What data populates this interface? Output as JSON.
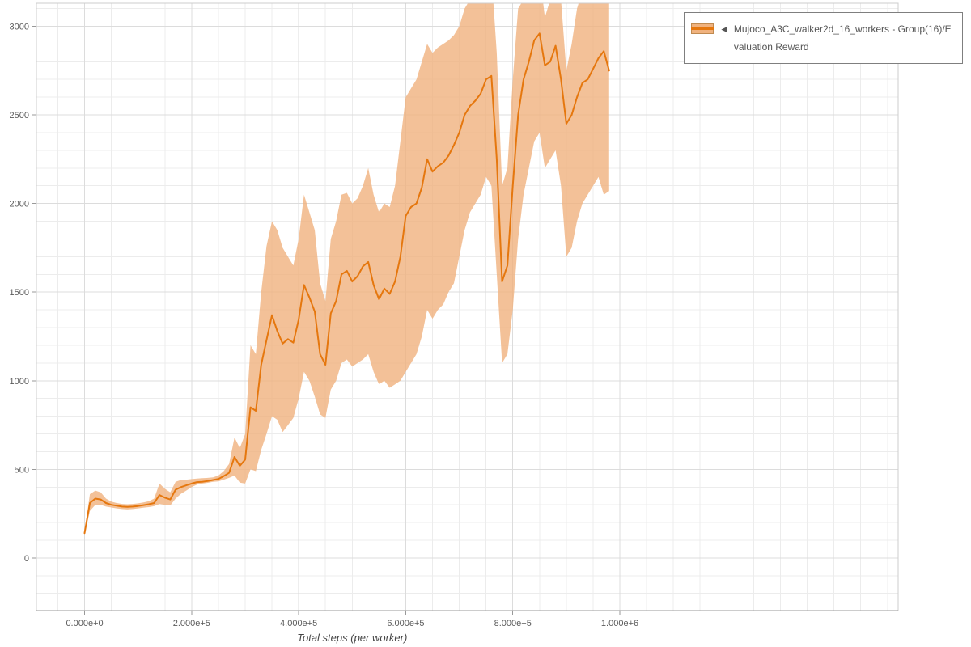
{
  "legend": {
    "collapse_icon": "◄",
    "label": "Mujoco_A3C_walker2d_16_workers - Group(16)/Evaluation Reward"
  },
  "chart_data": {
    "type": "line",
    "title": "",
    "xlabel": "Total steps (per worker)",
    "ylabel": "",
    "xlim": [
      -90000,
      1520000
    ],
    "ylim": [
      -297,
      3130
    ],
    "grid": {
      "on": true,
      "x_minor_step": 50000,
      "y_minor_step": 100,
      "minor_color": "#ececec",
      "major_color": "#dcdcdc"
    },
    "legend_position": "top-right-outside",
    "x_ticks": [
      {
        "value": 0,
        "label": "0.000e+0"
      },
      {
        "value": 200000,
        "label": "2.000e+5"
      },
      {
        "value": 400000,
        "label": "4.000e+5"
      },
      {
        "value": 600000,
        "label": "6.000e+5"
      },
      {
        "value": 800000,
        "label": "8.000e+5"
      },
      {
        "value": 1000000,
        "label": "1.000e+6"
      }
    ],
    "y_ticks": [
      {
        "value": 0,
        "label": "0"
      },
      {
        "value": 500,
        "label": "500"
      },
      {
        "value": 1000,
        "label": "1000"
      },
      {
        "value": 1500,
        "label": "1500"
      },
      {
        "value": 2000,
        "label": "2000"
      },
      {
        "value": 2500,
        "label": "2500"
      },
      {
        "value": 3000,
        "label": "3000"
      }
    ],
    "series": [
      {
        "name": "Mujoco_A3C_walker2d_16_workers - Group(16)/Evaluation Reward",
        "color": "#e5770e",
        "band_color": "#f0b27e",
        "band_opacity": 0.8,
        "x_start": 0,
        "x_step": 10000,
        "mean": [
          140,
          310,
          335,
          330,
          310,
          300,
          295,
          290,
          288,
          290,
          293,
          298,
          303,
          310,
          355,
          340,
          330,
          385,
          400,
          410,
          420,
          428,
          430,
          434,
          440,
          446,
          462,
          480,
          570,
          520,
          555,
          850,
          830,
          1090,
          1230,
          1370,
          1280,
          1210,
          1235,
          1215,
          1345,
          1540,
          1470,
          1390,
          1150,
          1090,
          1380,
          1450,
          1600,
          1620,
          1560,
          1590,
          1645,
          1670,
          1540,
          1460,
          1520,
          1490,
          1560,
          1700,
          1930,
          1980,
          2000,
          2090,
          2250,
          2180,
          2210,
          2230,
          2270,
          2330,
          2400,
          2500,
          2550,
          2580,
          2620,
          2700,
          2720,
          2250,
          1560,
          1650,
          2100,
          2500,
          2700,
          2800,
          2920,
          2960,
          2780,
          2800,
          2890,
          2700,
          2450,
          2500,
          2600,
          2680,
          2700,
          2760,
          2820,
          2860,
          2750
        ],
        "lower": [
          130,
          265,
          300,
          300,
          290,
          285,
          280,
          276,
          274,
          276,
          280,
          284,
          287,
          292,
          305,
          300,
          296,
          335,
          362,
          380,
          400,
          414,
          420,
          424,
          430,
          432,
          442,
          452,
          465,
          425,
          420,
          500,
          490,
          610,
          700,
          800,
          780,
          710,
          750,
          790,
          900,
          1050,
          1000,
          910,
          810,
          790,
          950,
          1000,
          1100,
          1120,
          1080,
          1100,
          1120,
          1150,
          1050,
          980,
          1000,
          960,
          980,
          1000,
          1050,
          1100,
          1150,
          1250,
          1400,
          1350,
          1400,
          1430,
          1500,
          1550,
          1700,
          1850,
          1950,
          2000,
          2050,
          2150,
          2100,
          1600,
          1100,
          1150,
          1400,
          1800,
          2050,
          2200,
          2350,
          2400,
          2200,
          2250,
          2300,
          2100,
          1700,
          1750,
          1900,
          2000,
          2050,
          2100,
          2150,
          2050,
          2070
        ],
        "upper": [
          150,
          360,
          380,
          370,
          335,
          318,
          310,
          305,
          303,
          305,
          308,
          313,
          320,
          335,
          420,
          390,
          370,
          430,
          440,
          442,
          445,
          448,
          450,
          452,
          455,
          465,
          490,
          530,
          680,
          620,
          700,
          1200,
          1150,
          1500,
          1760,
          1900,
          1850,
          1750,
          1700,
          1650,
          1800,
          2050,
          1950,
          1850,
          1550,
          1450,
          1800,
          1900,
          2050,
          2060,
          2000,
          2030,
          2100,
          2200,
          2050,
          1950,
          2000,
          1980,
          2100,
          2350,
          2600,
          2650,
          2700,
          2800,
          2900,
          2850,
          2880,
          2900,
          2920,
          2950,
          3000,
          3100,
          3150,
          3180,
          3250,
          3280,
          3300,
          2850,
          2100,
          2200,
          2700,
          3100,
          3150,
          3250,
          3300,
          3300,
          3050,
          3150,
          3250,
          3150,
          2750,
          2900,
          3100,
          3200,
          3250,
          3300,
          3300,
          3250,
          3200
        ]
      }
    ]
  }
}
